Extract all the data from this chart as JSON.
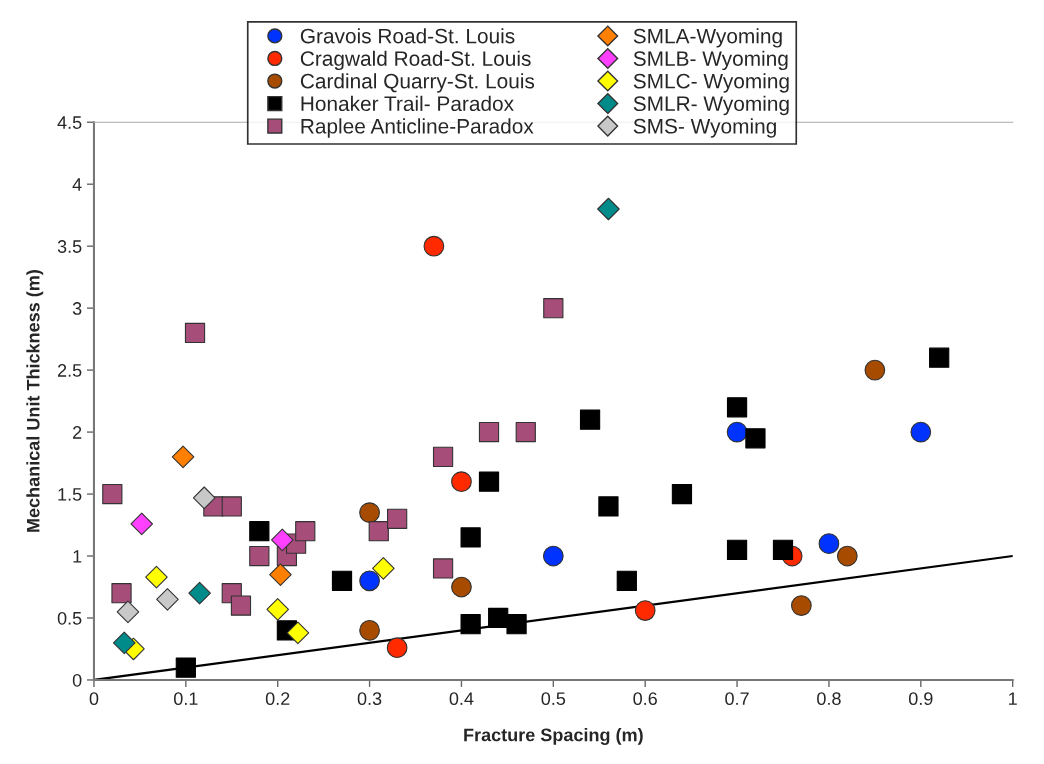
{
  "chart_data": {
    "type": "scatter",
    "xlabel": "Fracture Spacing (m)",
    "ylabel": "Mechanical Unit Thickness (m)",
    "xlim": [
      0,
      1
    ],
    "ylim": [
      0,
      4.5
    ],
    "xticks": [
      0,
      0.1,
      0.2,
      0.3,
      0.4,
      0.5,
      0.6,
      0.7,
      0.8,
      0.9,
      1
    ],
    "yticks": [
      0,
      0.5,
      1,
      1.5,
      2,
      2.5,
      3,
      3.5,
      4,
      4.5
    ],
    "grid": false,
    "legend": "top",
    "series": [
      {
        "name": "Gravois Road-St. Louis",
        "color": "#0033ff",
        "marker": "circle",
        "x": [
          0.3,
          0.5,
          0.7,
          0.8,
          0.9
        ],
        "values": [
          0.8,
          1.0,
          2.0,
          1.1,
          2.0
        ]
      },
      {
        "name": "Cragwald Road-St. Louis",
        "color": "#ff2a00",
        "marker": "circle",
        "x": [
          0.37,
          0.4,
          0.33,
          0.6,
          0.76
        ],
        "values": [
          3.5,
          1.6,
          0.26,
          0.56,
          1.0
        ]
      },
      {
        "name": "Cardinal Quarry-St. Louis",
        "color": "#a64b00",
        "marker": "circle",
        "x": [
          0.3,
          0.3,
          0.4,
          0.77,
          0.82,
          0.85
        ],
        "values": [
          1.35,
          0.4,
          0.75,
          0.6,
          1.0,
          2.5
        ]
      },
      {
        "name": "Honaker Trail- Paradox",
        "color": "#000000",
        "marker": "square",
        "x": [
          0.1,
          0.18,
          0.21,
          0.27,
          0.41,
          0.41,
          0.43,
          0.44,
          0.46,
          0.54,
          0.56,
          0.58,
          0.64,
          0.7,
          0.7,
          0.72,
          0.75,
          0.92
        ],
        "values": [
          0.1,
          1.2,
          0.4,
          0.8,
          1.15,
          0.45,
          1.6,
          0.5,
          0.45,
          2.1,
          1.4,
          0.8,
          1.5,
          2.2,
          1.05,
          1.95,
          1.05,
          2.6
        ]
      },
      {
        "name": "Raplee Anticline-Paradox",
        "color": "#a64d79",
        "marker": "square",
        "x": [
          0.02,
          0.03,
          0.11,
          0.13,
          0.15,
          0.15,
          0.16,
          0.18,
          0.21,
          0.22,
          0.23,
          0.31,
          0.33,
          0.38,
          0.38,
          0.43,
          0.47,
          0.5
        ],
        "values": [
          1.5,
          0.7,
          2.8,
          1.4,
          1.4,
          0.7,
          0.6,
          1.0,
          1.0,
          1.1,
          1.2,
          1.2,
          1.3,
          1.8,
          0.9,
          2.0,
          2.0,
          3.0
        ]
      },
      {
        "name": "SMLA-Wyoming",
        "color": "#ff7f00",
        "marker": "diamond",
        "x": [
          0.097,
          0.203
        ],
        "values": [
          1.8,
          0.85
        ]
      },
      {
        "name": "SMLB- Wyoming",
        "color": "#ff40ff",
        "marker": "diamond",
        "x": [
          0.052,
          0.205
        ],
        "values": [
          1.26,
          1.13
        ]
      },
      {
        "name": "SMLC- Wyoming",
        "color": "#ffff00",
        "marker": "diamond",
        "x": [
          0.043,
          0.068,
          0.2,
          0.222,
          0.315
        ],
        "values": [
          0.25,
          0.83,
          0.57,
          0.38,
          0.9
        ]
      },
      {
        "name": "SMLR- Wyoming",
        "color": "#008b8b",
        "marker": "diamond",
        "x": [
          0.033,
          0.115,
          0.56
        ],
        "values": [
          0.3,
          0.7,
          3.8
        ]
      },
      {
        "name": "SMS- Wyoming",
        "color": "#c8c8c8",
        "marker": "diamond",
        "x": [
          0.037,
          0.08,
          0.12
        ],
        "values": [
          0.55,
          0.65,
          1.47
        ]
      },
      {
        "type": "line",
        "color": "#000000",
        "x": [
          0,
          1
        ],
        "values": [
          0,
          1
        ]
      }
    ]
  }
}
